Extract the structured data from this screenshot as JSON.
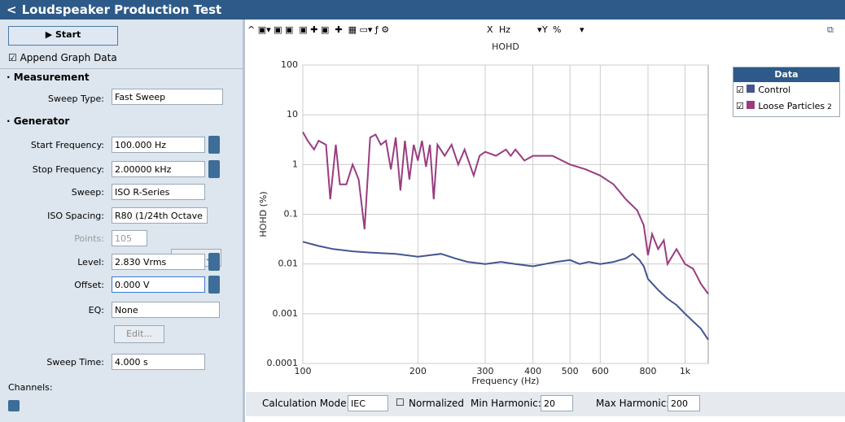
{
  "header": {
    "title": "Loudspeaker Production Test"
  },
  "panel": {
    "start": "Start",
    "append": "Append Graph Data",
    "measurement": {
      "heading": "Measurement",
      "label": "Sweep Type:",
      "value": "Fast Sweep"
    },
    "generator": {
      "heading": "Generator",
      "fields": [
        {
          "label": "Start Frequency:",
          "value": "100.000 Hz"
        },
        {
          "label": "Stop Frequency:",
          "value": "2.00000 kHz"
        },
        {
          "label": "Sweep:",
          "value": "ISO R-Series"
        },
        {
          "label": "ISO Spacing:",
          "value": "R80 (1/24th Octave"
        },
        {
          "label": "Points:",
          "value": "105"
        },
        {
          "label": "Level:",
          "value": "2.830 Vrms"
        },
        {
          "label": "Offset:",
          "value": "0.000 V"
        },
        {
          "label": "EQ:",
          "value": "None"
        },
        {
          "label": "Sweep Time:",
          "value": "4.000 s"
        }
      ],
      "edit": "Edit...",
      "eq_edit": "Edit..."
    },
    "channels": "Channels:"
  },
  "toolbar": {
    "x": "X",
    "x_unit": "Hz",
    "y": "Y",
    "y_unit": "%"
  },
  "legend_title": "Data",
  "legend_badge": "2",
  "bottom": {
    "calc_label": "Calculation Mode:",
    "calc_value": "IEC",
    "normalized": "Normalized",
    "min_label": "Min Harmonic:",
    "min_value": "20",
    "max_label": "Max Harmonic:",
    "max_value": "200"
  },
  "chart_data": {
    "type": "line",
    "title": "HOHD",
    "x_label": "Frequency (Hz)",
    "y_label": "HOHD (%)",
    "xlog": true,
    "ylog": true,
    "grid": true,
    "xlim": [
      100,
      1150
    ],
    "ylim": [
      0.0001,
      100
    ],
    "xticks": [
      100,
      200,
      300,
      400,
      500,
      600,
      800,
      {
        "value": 1000,
        "label": "1k"
      }
    ],
    "yticks": [
      0.0001,
      0.001,
      0.01,
      0.1,
      1,
      10,
      100
    ],
    "series": [
      {
        "name": "Control",
        "color": "#44568f",
        "x": [
          100,
          110,
          120,
          135,
          150,
          175,
          200,
          215,
          230,
          250,
          270,
          300,
          330,
          360,
          400,
          430,
          460,
          500,
          530,
          560,
          600,
          650,
          700,
          730,
          760,
          780,
          800,
          850,
          900,
          950,
          1000,
          1050,
          1100,
          1150
        ],
        "values": [
          0.028,
          0.023,
          0.02,
          0.018,
          0.017,
          0.016,
          0.014,
          0.015,
          0.016,
          0.013,
          0.011,
          0.01,
          0.011,
          0.01,
          0.009,
          0.01,
          0.011,
          0.012,
          0.01,
          0.011,
          0.01,
          0.011,
          0.013,
          0.016,
          0.012,
          0.009,
          0.005,
          0.003,
          0.002,
          0.0015,
          0.001,
          0.0007,
          0.0005,
          0.0003
        ]
      },
      {
        "name": "Loose Particles",
        "color": "#9a3c80",
        "x": [
          100,
          103,
          107,
          110,
          115,
          118,
          122,
          125,
          130,
          135,
          140,
          145,
          150,
          155,
          160,
          165,
          170,
          175,
          180,
          185,
          190,
          195,
          200,
          205,
          210,
          215,
          220,
          225,
          235,
          245,
          255,
          265,
          280,
          290,
          300,
          320,
          340,
          350,
          360,
          380,
          400,
          450,
          500,
          550,
          600,
          650,
          700,
          750,
          780,
          800,
          820,
          850,
          880,
          900,
          950,
          1000,
          1050,
          1100,
          1150
        ],
        "values": [
          4.5,
          3,
          2,
          3,
          2.5,
          0.2,
          2.5,
          0.4,
          0.4,
          1,
          0.5,
          0.05,
          3.5,
          4,
          2.5,
          3,
          0.8,
          3.5,
          0.3,
          3,
          0.5,
          2.5,
          1.2,
          3,
          0.9,
          2.5,
          0.2,
          2.5,
          1.5,
          2.5,
          1,
          2,
          0.6,
          1.5,
          1.8,
          1.5,
          2,
          1.5,
          2,
          1.2,
          1.5,
          1.5,
          1,
          0.8,
          0.6,
          0.4,
          0.2,
          0.12,
          0.06,
          0.015,
          0.04,
          0.02,
          0.03,
          0.01,
          0.02,
          0.01,
          0.008,
          0.004,
          0.0025
        ]
      }
    ]
  }
}
